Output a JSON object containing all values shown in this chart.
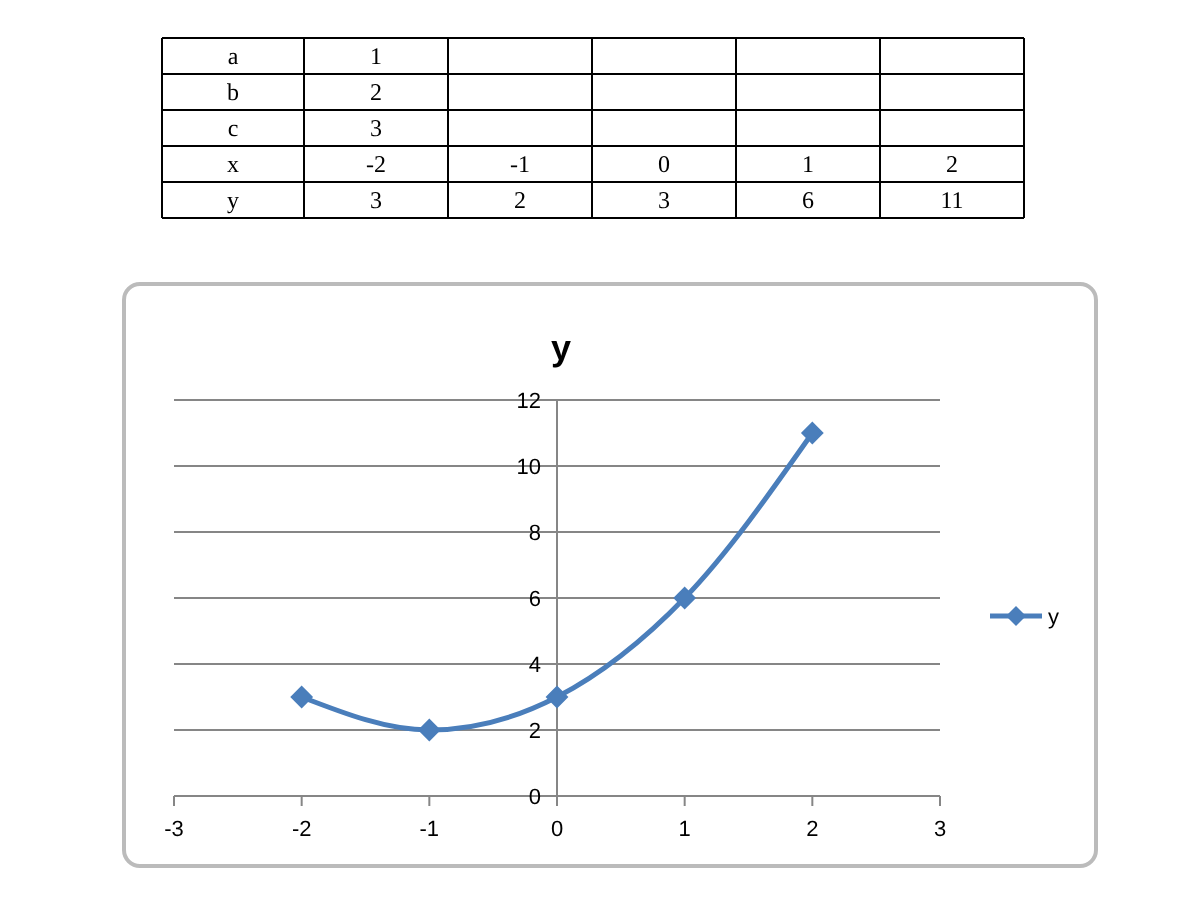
{
  "chart_data": {
    "type": "line",
    "title": "y",
    "x": [
      -2,
      -1,
      0,
      1,
      2
    ],
    "series": [
      {
        "name": "y",
        "color": "#4a7ebb",
        "values": [
          3,
          2,
          3,
          6,
          11
        ]
      }
    ],
    "xlim": [
      -3,
      3
    ],
    "xticks": [
      -3,
      -2,
      -1,
      0,
      1,
      2,
      3
    ],
    "ylim": [
      0,
      12
    ],
    "yticks": [
      0,
      2,
      4,
      6,
      8,
      10,
      12
    ],
    "grid": "y",
    "legend": "right",
    "marker": "diamond",
    "line_style": "solid",
    "annotations": [
      "a",
      "1",
      "b",
      "2",
      "c",
      "3",
      "x",
      "-2",
      "-1",
      "0",
      "1",
      "2",
      "y",
      "3",
      "2",
      "3",
      "6",
      "11"
    ]
  }
}
